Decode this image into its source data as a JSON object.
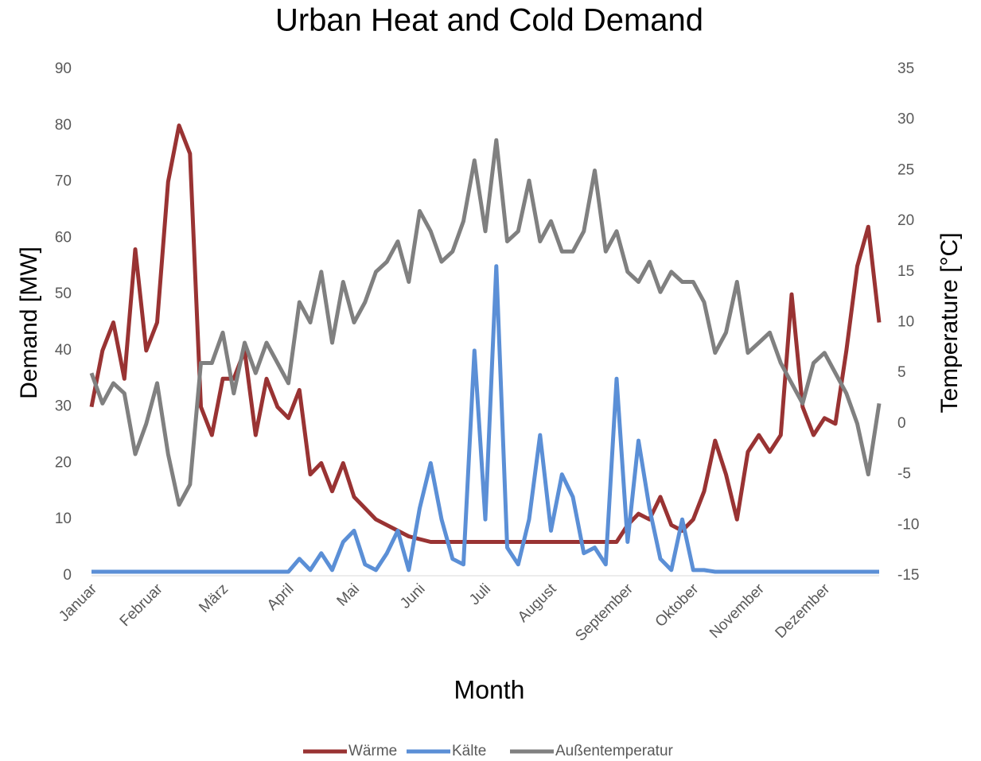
{
  "chart_data": {
    "type": "line",
    "title": "Urban Heat and Cold Demand",
    "xlabel": "Month",
    "ylabel": "Demand [MW]",
    "y2label": "Temperature [°C]",
    "categories": [
      "Januar",
      null,
      null,
      null,
      null,
      null,
      "Februar",
      null,
      null,
      null,
      null,
      null,
      "März",
      null,
      null,
      null,
      null,
      null,
      "April",
      null,
      null,
      null,
      null,
      null,
      "Mai",
      null,
      null,
      null,
      null,
      null,
      "Juni",
      null,
      null,
      null,
      null,
      null,
      "Juli",
      null,
      null,
      null,
      null,
      null,
      "August",
      null,
      null,
      null,
      null,
      null,
      null,
      "September",
      null,
      null,
      null,
      null,
      null,
      "Oktober",
      null,
      null,
      null,
      null,
      null,
      "November",
      null,
      null,
      null,
      null,
      null,
      "Dezember",
      null,
      null,
      null,
      null,
      null
    ],
    "ylim": [
      0,
      90
    ],
    "yticks": [
      0,
      10,
      20,
      30,
      40,
      50,
      60,
      70,
      80,
      90
    ],
    "y2lim": [
      -15,
      35
    ],
    "y2ticks": [
      -15,
      -10,
      -5,
      0,
      5,
      10,
      15,
      20,
      25,
      30,
      35
    ],
    "legend": "bottom",
    "series": [
      {
        "name": "Wärme",
        "color": "#993333",
        "values": [
          30,
          40,
          45,
          35,
          58,
          40,
          45,
          70,
          80,
          75,
          30,
          25,
          35,
          35,
          40,
          25,
          35,
          30,
          28,
          33,
          18,
          20,
          15,
          20,
          14,
          12,
          10,
          9,
          8,
          7,
          6.5,
          6,
          6,
          6,
          6,
          6,
          6,
          6,
          6,
          6,
          6,
          6,
          6,
          6,
          6,
          6,
          6,
          6,
          6,
          9,
          11,
          10,
          14,
          9,
          8,
          10,
          15,
          24,
          18,
          10,
          22,
          25,
          22,
          25,
          50,
          30,
          25,
          28,
          27,
          40,
          55,
          62,
          45
        ]
      },
      {
        "name": "Kälte",
        "color": "#5b8fd6",
        "values": [
          0.7,
          0.7,
          0.7,
          0.7,
          0.7,
          0.7,
          0.7,
          0.7,
          0.7,
          0.7,
          0.7,
          0.7,
          0.7,
          0.7,
          0.7,
          0.7,
          0.7,
          0.7,
          0.7,
          3,
          1,
          4,
          1,
          6,
          8,
          2,
          1,
          4,
          8,
          1,
          12,
          20,
          10,
          3,
          2,
          40,
          10,
          55,
          5,
          2,
          10,
          25,
          8,
          18,
          14,
          4,
          5,
          2,
          35,
          6,
          24,
          12,
          3,
          1,
          10,
          1,
          1,
          0.7,
          0.7,
          0.7,
          0.7,
          0.7,
          0.7,
          0.7,
          0.7,
          0.7,
          0.7,
          0.7,
          0.7,
          0.7,
          0.7,
          0.7,
          0.7
        ]
      },
      {
        "name": "Außentemperatur",
        "color": "#808080",
        "axis": "y2",
        "values": [
          5,
          2,
          4,
          3,
          -3,
          0,
          4,
          -3,
          -8,
          -6,
          6,
          6,
          9,
          3,
          8,
          5,
          8,
          6,
          4,
          12,
          10,
          15,
          8,
          14,
          10,
          12,
          15,
          16,
          18,
          14,
          21,
          19,
          16,
          17,
          20,
          26,
          19,
          28,
          18,
          19,
          24,
          18,
          20,
          17,
          17,
          19,
          25,
          17,
          19,
          15,
          14,
          16,
          13,
          15,
          14,
          14,
          12,
          7,
          9,
          14,
          7,
          8,
          9,
          6,
          4,
          2,
          6,
          7,
          5,
          3,
          0,
          -5,
          2
        ]
      }
    ]
  }
}
